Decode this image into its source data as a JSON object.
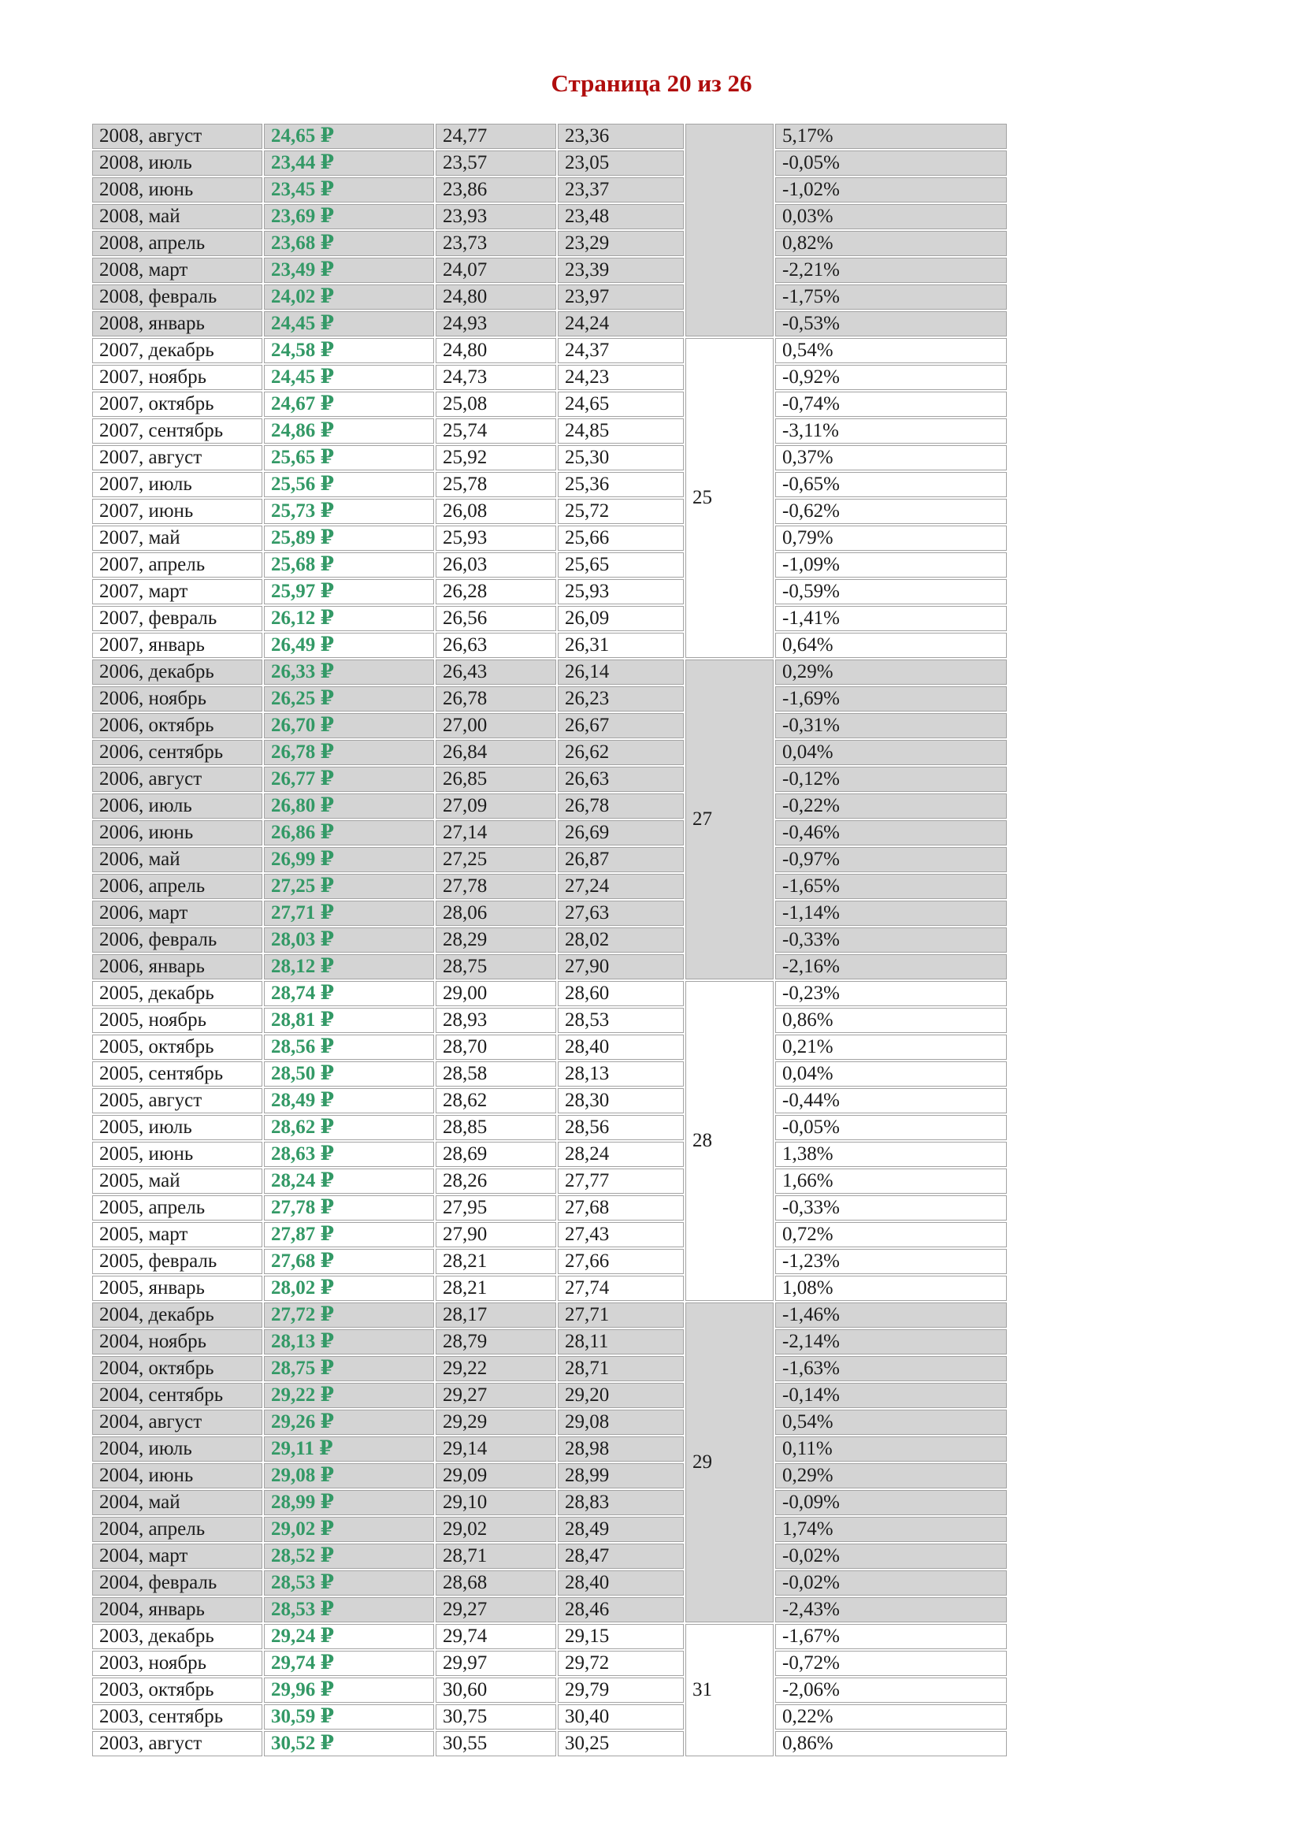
{
  "page": {
    "title": "Страница 20 из 26",
    "page_number": 20,
    "total_pages": 26
  },
  "colors": {
    "title_red": "#b00d0d",
    "rate_green": "#339966",
    "row_shaded_bg": "#d4d4d4",
    "row_plain_bg": "#ffffff",
    "grid_border": "#a3a3a3",
    "text": "#1c1c1c"
  },
  "table": {
    "columns": [
      "period",
      "rate",
      "high",
      "low",
      "days",
      "change_percent"
    ],
    "groups": [
      {
        "days_label": "",
        "shaded": true,
        "rows": [
          {
            "period": "2008, август",
            "rate": "24,65 ₽",
            "high": "24,77",
            "low": "23,36",
            "change": "5,17%"
          },
          {
            "period": "2008, июль",
            "rate": "23,44 ₽",
            "high": "23,57",
            "low": "23,05",
            "change": "-0,05%"
          },
          {
            "period": "2008, июнь",
            "rate": "23,45 ₽",
            "high": "23,86",
            "low": "23,37",
            "change": "-1,02%"
          },
          {
            "period": "2008, май",
            "rate": "23,69 ₽",
            "high": "23,93",
            "low": "23,48",
            "change": "0,03%"
          },
          {
            "period": "2008, апрель",
            "rate": "23,68 ₽",
            "high": "23,73",
            "low": "23,29",
            "change": "0,82%"
          },
          {
            "period": "2008, март",
            "rate": "23,49 ₽",
            "high": "24,07",
            "low": "23,39",
            "change": "-2,21%"
          },
          {
            "period": "2008, февраль",
            "rate": "24,02 ₽",
            "high": "24,80",
            "low": "23,97",
            "change": "-1,75%"
          },
          {
            "period": "2008, январь",
            "rate": "24,45 ₽",
            "high": "24,93",
            "low": "24,24",
            "change": "-0,53%"
          }
        ]
      },
      {
        "days_label": "25",
        "shaded": false,
        "rows": [
          {
            "period": "2007, декабрь",
            "rate": "24,58 ₽",
            "high": "24,80",
            "low": "24,37",
            "change": "0,54%"
          },
          {
            "period": "2007, ноябрь",
            "rate": "24,45 ₽",
            "high": "24,73",
            "low": "24,23",
            "change": "-0,92%"
          },
          {
            "period": "2007, октябрь",
            "rate": "24,67 ₽",
            "high": "25,08",
            "low": "24,65",
            "change": "-0,74%"
          },
          {
            "period": "2007, сентябрь",
            "rate": "24,86 ₽",
            "high": "25,74",
            "low": "24,85",
            "change": "-3,11%"
          },
          {
            "period": "2007, август",
            "rate": "25,65 ₽",
            "high": "25,92",
            "low": "25,30",
            "change": "0,37%"
          },
          {
            "period": "2007, июль",
            "rate": "25,56 ₽",
            "high": "25,78",
            "low": "25,36",
            "change": "-0,65%"
          },
          {
            "period": "2007, июнь",
            "rate": "25,73 ₽",
            "high": "26,08",
            "low": "25,72",
            "change": "-0,62%"
          },
          {
            "period": "2007, май",
            "rate": "25,89 ₽",
            "high": "25,93",
            "low": "25,66",
            "change": "0,79%"
          },
          {
            "period": "2007, апрель",
            "rate": "25,68 ₽",
            "high": "26,03",
            "low": "25,65",
            "change": "-1,09%"
          },
          {
            "period": "2007, март",
            "rate": "25,97 ₽",
            "high": "26,28",
            "low": "25,93",
            "change": "-0,59%"
          },
          {
            "period": "2007, февраль",
            "rate": "26,12 ₽",
            "high": "26,56",
            "low": "26,09",
            "change": "-1,41%"
          },
          {
            "period": "2007, январь",
            "rate": "26,49 ₽",
            "high": "26,63",
            "low": "26,31",
            "change": "0,64%"
          }
        ]
      },
      {
        "days_label": "27",
        "shaded": true,
        "rows": [
          {
            "period": "2006, декабрь",
            "rate": "26,33 ₽",
            "high": "26,43",
            "low": "26,14",
            "change": "0,29%"
          },
          {
            "period": "2006, ноябрь",
            "rate": "26,25 ₽",
            "high": "26,78",
            "low": "26,23",
            "change": "-1,69%"
          },
          {
            "period": "2006, октябрь",
            "rate": "26,70 ₽",
            "high": "27,00",
            "low": "26,67",
            "change": "-0,31%"
          },
          {
            "period": "2006, сентябрь",
            "rate": "26,78 ₽",
            "high": "26,84",
            "low": "26,62",
            "change": "0,04%"
          },
          {
            "period": "2006, август",
            "rate": "26,77 ₽",
            "high": "26,85",
            "low": "26,63",
            "change": "-0,12%"
          },
          {
            "period": "2006, июль",
            "rate": "26,80 ₽",
            "high": "27,09",
            "low": "26,78",
            "change": "-0,22%"
          },
          {
            "period": "2006, июнь",
            "rate": "26,86 ₽",
            "high": "27,14",
            "low": "26,69",
            "change": "-0,46%"
          },
          {
            "period": "2006, май",
            "rate": "26,99 ₽",
            "high": "27,25",
            "low": "26,87",
            "change": "-0,97%"
          },
          {
            "period": "2006, апрель",
            "rate": "27,25 ₽",
            "high": "27,78",
            "low": "27,24",
            "change": "-1,65%"
          },
          {
            "period": "2006, март",
            "rate": "27,71 ₽",
            "high": "28,06",
            "low": "27,63",
            "change": "-1,14%"
          },
          {
            "period": "2006, февраль",
            "rate": "28,03 ₽",
            "high": "28,29",
            "low": "28,02",
            "change": "-0,33%"
          },
          {
            "period": "2006, январь",
            "rate": "28,12 ₽",
            "high": "28,75",
            "low": "27,90",
            "change": "-2,16%"
          }
        ]
      },
      {
        "days_label": "28",
        "shaded": false,
        "rows": [
          {
            "period": "2005, декабрь",
            "rate": "28,74 ₽",
            "high": "29,00",
            "low": "28,60",
            "change": "-0,23%"
          },
          {
            "period": "2005, ноябрь",
            "rate": "28,81 ₽",
            "high": "28,93",
            "low": "28,53",
            "change": "0,86%"
          },
          {
            "period": "2005, октябрь",
            "rate": "28,56 ₽",
            "high": "28,70",
            "low": "28,40",
            "change": "0,21%"
          },
          {
            "period": "2005, сентябрь",
            "rate": "28,50 ₽",
            "high": "28,58",
            "low": "28,13",
            "change": "0,04%"
          },
          {
            "period": "2005, август",
            "rate": "28,49 ₽",
            "high": "28,62",
            "low": "28,30",
            "change": "-0,44%"
          },
          {
            "period": "2005, июль",
            "rate": "28,62 ₽",
            "high": "28,85",
            "low": "28,56",
            "change": "-0,05%"
          },
          {
            "period": "2005, июнь",
            "rate": "28,63 ₽",
            "high": "28,69",
            "low": "28,24",
            "change": "1,38%"
          },
          {
            "period": "2005, май",
            "rate": "28,24 ₽",
            "high": "28,26",
            "low": "27,77",
            "change": "1,66%"
          },
          {
            "period": "2005, апрель",
            "rate": "27,78 ₽",
            "high": "27,95",
            "low": "27,68",
            "change": "-0,33%"
          },
          {
            "period": "2005, март",
            "rate": "27,87 ₽",
            "high": "27,90",
            "low": "27,43",
            "change": "0,72%"
          },
          {
            "period": "2005, февраль",
            "rate": "27,68 ₽",
            "high": "28,21",
            "low": "27,66",
            "change": "-1,23%"
          },
          {
            "period": "2005, январь",
            "rate": "28,02 ₽",
            "high": "28,21",
            "low": "27,74",
            "change": "1,08%"
          }
        ]
      },
      {
        "days_label": "29",
        "shaded": true,
        "rows": [
          {
            "period": "2004, декабрь",
            "rate": "27,72 ₽",
            "high": "28,17",
            "low": "27,71",
            "change": "-1,46%"
          },
          {
            "period": "2004, ноябрь",
            "rate": "28,13 ₽",
            "high": "28,79",
            "low": "28,11",
            "change": "-2,14%"
          },
          {
            "period": "2004, октябрь",
            "rate": "28,75 ₽",
            "high": "29,22",
            "low": "28,71",
            "change": "-1,63%"
          },
          {
            "period": "2004, сентябрь",
            "rate": "29,22 ₽",
            "high": "29,27",
            "low": "29,20",
            "change": "-0,14%"
          },
          {
            "period": "2004, август",
            "rate": "29,26 ₽",
            "high": "29,29",
            "low": "29,08",
            "change": "0,54%"
          },
          {
            "period": "2004, июль",
            "rate": "29,11 ₽",
            "high": "29,14",
            "low": "28,98",
            "change": "0,11%"
          },
          {
            "period": "2004, июнь",
            "rate": "29,08 ₽",
            "high": "29,09",
            "low": "28,99",
            "change": "0,29%"
          },
          {
            "period": "2004, май",
            "rate": "28,99 ₽",
            "high": "29,10",
            "low": "28,83",
            "change": "-0,09%"
          },
          {
            "period": "2004, апрель",
            "rate": "29,02 ₽",
            "high": "29,02",
            "low": "28,49",
            "change": "1,74%"
          },
          {
            "period": "2004, март",
            "rate": "28,52 ₽",
            "high": "28,71",
            "low": "28,47",
            "change": "-0,02%"
          },
          {
            "period": "2004, февраль",
            "rate": "28,53 ₽",
            "high": "28,68",
            "low": "28,40",
            "change": "-0,02%"
          },
          {
            "period": "2004, январь",
            "rate": "28,53 ₽",
            "high": "29,27",
            "low": "28,46",
            "change": "-2,43%"
          }
        ]
      },
      {
        "days_label": "31",
        "shaded": false,
        "rows": [
          {
            "period": "2003, декабрь",
            "rate": "29,24 ₽",
            "high": "29,74",
            "low": "29,15",
            "change": "-1,67%"
          },
          {
            "period": "2003, ноябрь",
            "rate": "29,74 ₽",
            "high": "29,97",
            "low": "29,72",
            "change": "-0,72%"
          },
          {
            "period": "2003, октябрь",
            "rate": "29,96 ₽",
            "high": "30,60",
            "low": "29,79",
            "change": "-2,06%"
          },
          {
            "period": "2003, сентябрь",
            "rate": "30,59 ₽",
            "high": "30,75",
            "low": "30,40",
            "change": "0,22%"
          },
          {
            "period": "2003, август",
            "rate": "30,52 ₽",
            "high": "30,55",
            "low": "30,25",
            "change": "0,86%"
          }
        ]
      }
    ]
  }
}
